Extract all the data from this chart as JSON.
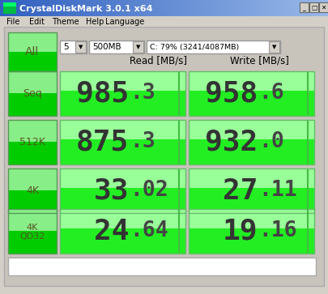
{
  "title": "CrystalDiskMark 3.0.1 x64",
  "menu_items": [
    "File",
    "Edit",
    "Theme",
    "Help",
    "Language"
  ],
  "dropdown1": "5",
  "dropdown2": "500MB",
  "dropdown3": "C: 79% (3241/4087MB)",
  "col_labels": [
    "Read [MB/s]",
    "Write [MB/s]"
  ],
  "row_labels": [
    "Seq",
    "512K",
    "4K",
    "4K\nQD32"
  ],
  "read_int": [
    "985",
    "875",
    "33",
    "24"
  ],
  "read_dec": [
    ".3",
    ".3",
    ".02",
    ".64"
  ],
  "write_int": [
    "958",
    "932",
    "27",
    "19"
  ],
  "write_dec": [
    ".6",
    ".0",
    ".11",
    ".16"
  ],
  "bg_color": "#d4d0c8",
  "titlebar_left": "#5580c8",
  "titlebar_right": "#a8c0e8",
  "green_btn_top": "#aaffaa",
  "green_btn_bot": "#00cc00",
  "green_cell_top": "#ccffcc",
  "green_cell_bot": "#22dd22",
  "green_cell_mid": "#00ee00",
  "text_dark": "#404040",
  "border_color": "#888888",
  "white": "#ffffff",
  "cell_outline": "#88cc88"
}
